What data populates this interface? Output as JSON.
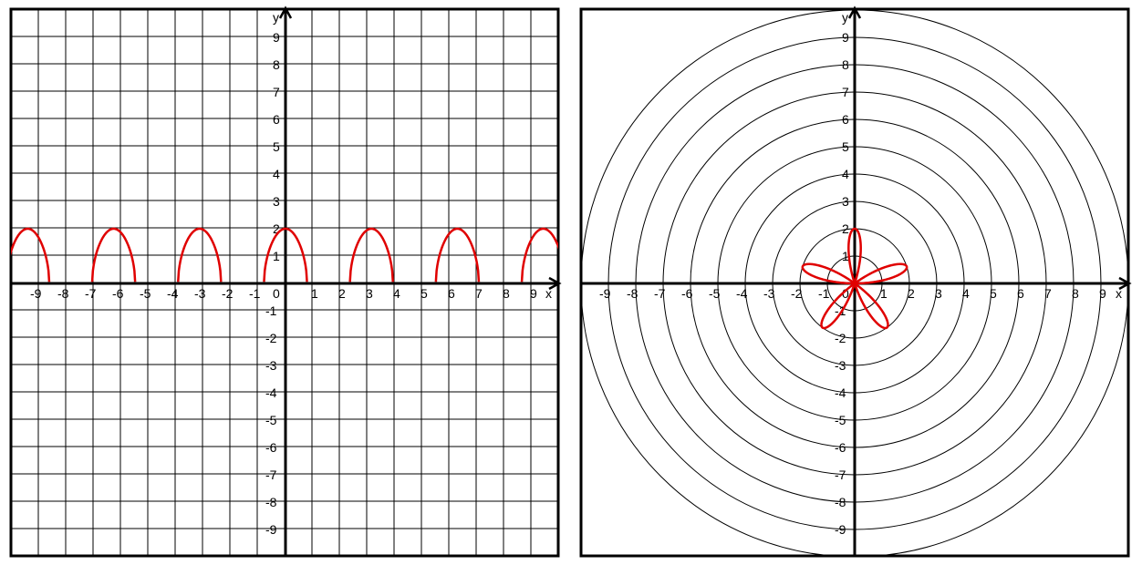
{
  "colors": {
    "grid": "#000000",
    "curve": "#e00000",
    "background": "#ffffff"
  },
  "chart_data": [
    {
      "type": "line",
      "grid": true,
      "xlim": [
        -10,
        10
      ],
      "ylim": [
        -10,
        10
      ],
      "axis_labels": {
        "x": "x",
        "y": "y"
      },
      "x_tick_labels": [
        "-9",
        "-8",
        "-7",
        "-6",
        "-5",
        "-4",
        "-3",
        "-2",
        "-1",
        "0",
        "1",
        "2",
        "3",
        "4",
        "5",
        "6",
        "7",
        "8",
        "9"
      ],
      "y_tick_labels": [
        "9",
        "8",
        "7",
        "6",
        "5",
        "4",
        "3",
        "2",
        "1",
        "-1",
        "-2",
        "-3",
        "-4",
        "-5",
        "-6",
        "-7",
        "-8",
        "-9"
      ],
      "curve_description": "y = 2·sqrt(|cos(2x)|)·(cos(2x)≥0), arches of height 2, period π",
      "series": [
        {
          "arch_centers_x": [
            -9.42,
            -6.28,
            -3.14,
            0,
            3.14,
            6.28,
            9.42
          ],
          "arch_half_width": 0.785,
          "arch_height": 2
        }
      ]
    },
    {
      "type": "polar",
      "grid": true,
      "rings": [
        1,
        2,
        3,
        4,
        5,
        6,
        7,
        8,
        9,
        10
      ],
      "xlim": [
        -10,
        10
      ],
      "ylim": [
        -10,
        10
      ],
      "axis_labels": {
        "x": "x",
        "y": "y"
      },
      "x_tick_labels": [
        "-9",
        "-8",
        "-7",
        "-6",
        "-5",
        "-4",
        "-3",
        "-2",
        "-1",
        "0",
        "1",
        "2",
        "3",
        "4",
        "5",
        "6",
        "7",
        "8",
        "9"
      ],
      "y_tick_labels": [
        "9",
        "8",
        "7",
        "6",
        "5",
        "4",
        "3",
        "2",
        "1",
        "-1",
        "-2",
        "-3",
        "-4",
        "-5",
        "-6",
        "-7",
        "-8",
        "-9"
      ],
      "curve_description": "rose curve with 5 petals, max radius 2",
      "series": [
        {
          "petals": 5,
          "max_r": 2,
          "petal_angles_deg": [
            18,
            90,
            162,
            234,
            306
          ]
        }
      ]
    }
  ]
}
